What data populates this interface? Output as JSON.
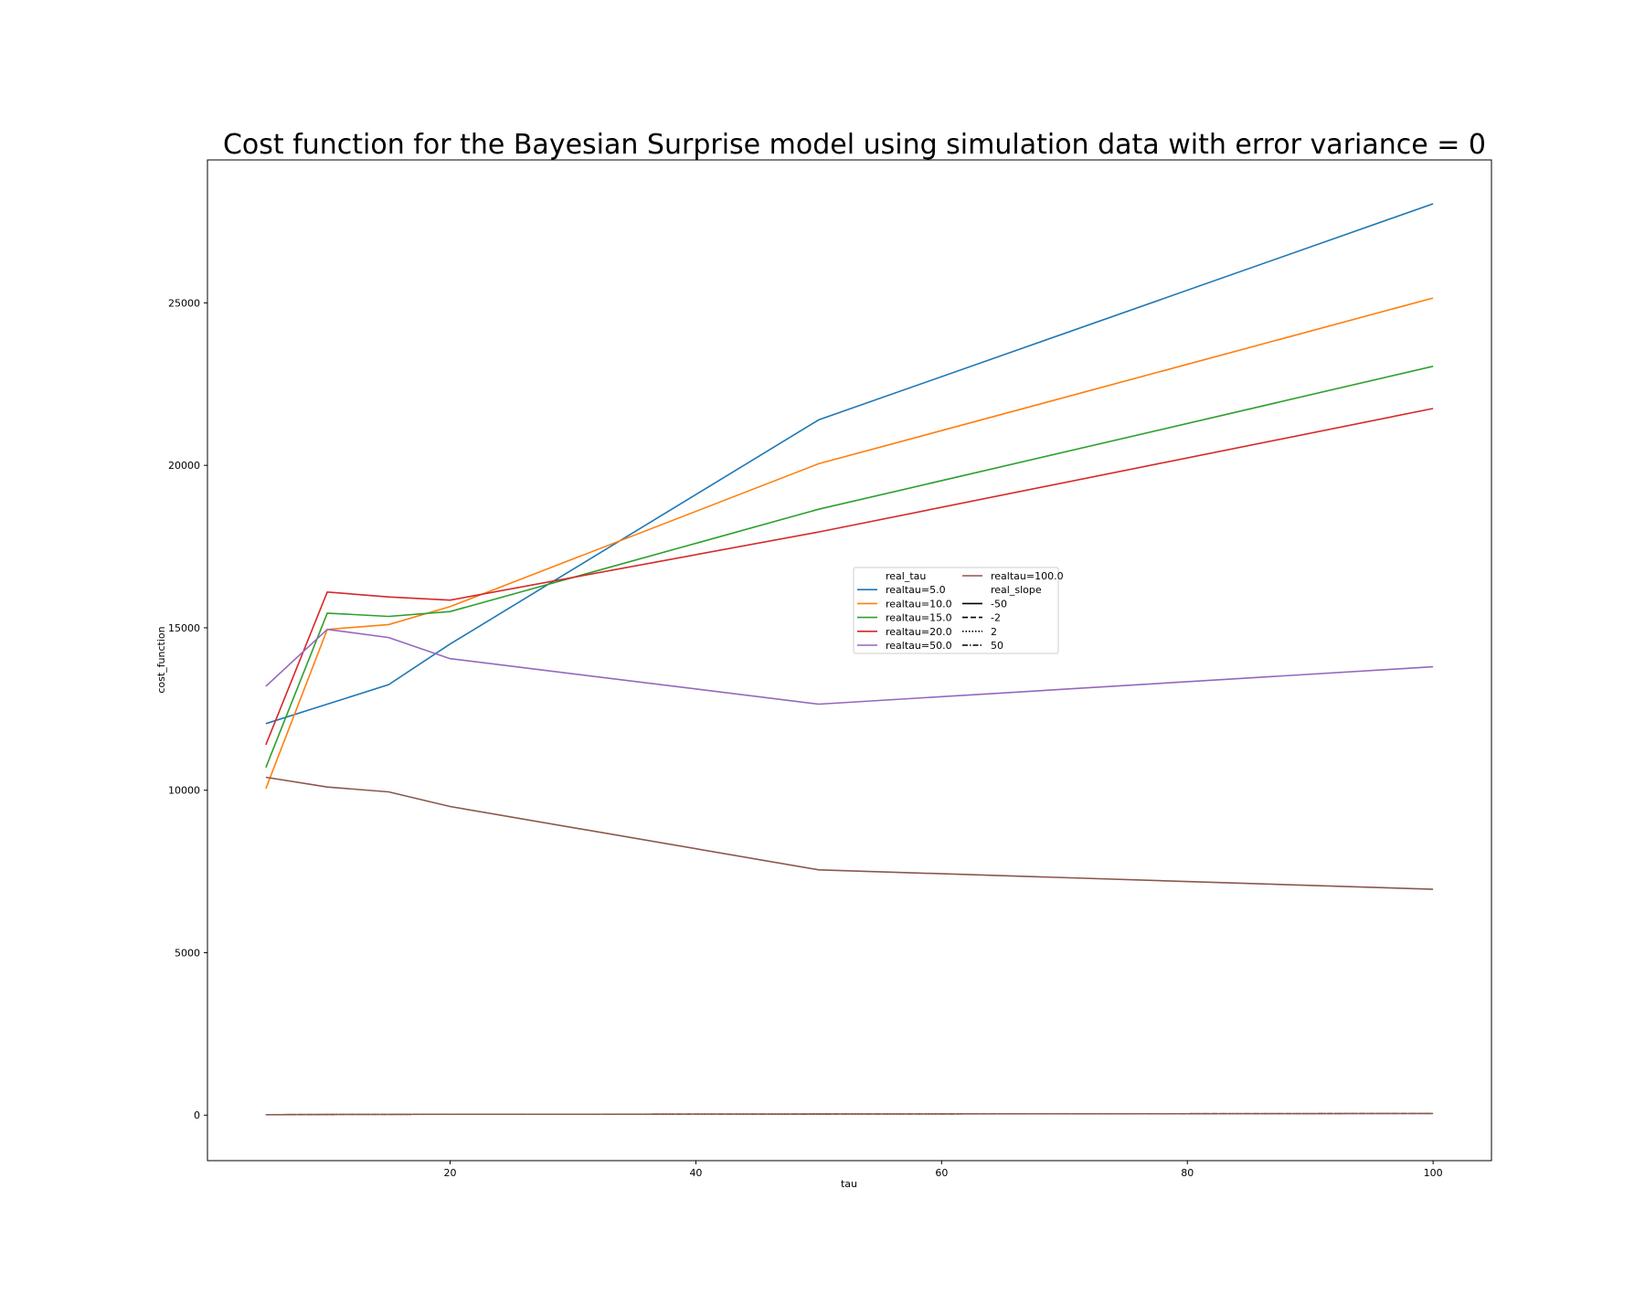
{
  "chart_data": {
    "type": "line",
    "title": "Cost function for the Bayesian Surprise model using simulation data with error variance = 0",
    "xlabel": "tau",
    "ylabel": "cost_function",
    "xlim": [
      0.25,
      104.75
    ],
    "ylim": [
      -1400,
      29400
    ],
    "xticks": [
      20,
      40,
      60,
      80,
      100
    ],
    "yticks": [
      0,
      5000,
      10000,
      15000,
      20000,
      25000
    ],
    "grid": false,
    "x": [
      5,
      10,
      15,
      20,
      50,
      100
    ],
    "series": [
      {
        "name": "realtau=5.0",
        "color": "#1f77b4",
        "values": [
          12050,
          12650,
          13250,
          14500,
          21400,
          28050
        ]
      },
      {
        "name": "realtau=10.0",
        "color": "#ff7f0e",
        "values": [
          10050,
          14950,
          15100,
          15650,
          20050,
          25150
        ]
      },
      {
        "name": "realtau=15.0",
        "color": "#2ca02c",
        "values": [
          10700,
          15450,
          15350,
          15500,
          18650,
          23050
        ]
      },
      {
        "name": "realtau=20.0",
        "color": "#d62728",
        "values": [
          11400,
          16100,
          15950,
          15850,
          17950,
          21750
        ]
      },
      {
        "name": "realtau=50.0",
        "color": "#9467bd",
        "values": [
          13200,
          14950,
          14700,
          14050,
          12650,
          13800
        ]
      },
      {
        "name": "realtau=100.0",
        "color": "#8c564b",
        "values": [
          10400,
          10100,
          9950,
          9500,
          7550,
          6950
        ]
      }
    ],
    "baseline_values": [
      15,
      20,
      22,
      25,
      35,
      50
    ],
    "legend": {
      "position": "center",
      "hue_title": "real_tau",
      "style_title": "real_slope",
      "style_entries": [
        {
          "label": "-50",
          "dash": "solid"
        },
        {
          "label": "-2",
          "dash": "dashed"
        },
        {
          "label": "2",
          "dash": "dotted"
        },
        {
          "label": "50",
          "dash": "dashdot"
        }
      ]
    }
  }
}
